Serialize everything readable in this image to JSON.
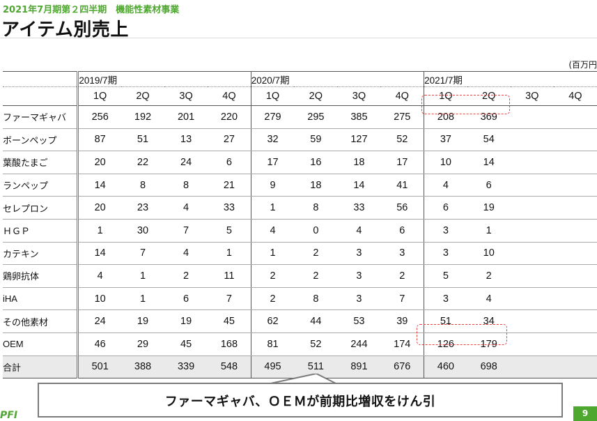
{
  "header": {
    "subtitle": "2021年7月期第２四半期　機能性素材事業",
    "title": "アイテム別売上",
    "unit": "(百万円"
  },
  "table": {
    "years": [
      "2019/7期",
      "2020/7期",
      "2021/7期"
    ],
    "quarters": [
      "1Q",
      "2Q",
      "3Q",
      "4Q",
      "1Q",
      "2Q",
      "3Q",
      "4Q",
      "1Q",
      "2Q",
      "3Q",
      "4Q"
    ],
    "rows": [
      {
        "label": "ファーマギャバ",
        "values": [
          "256",
          "192",
          "201",
          "220",
          "279",
          "295",
          "385",
          "275",
          "208",
          "369",
          "",
          ""
        ]
      },
      {
        "label": "ボーンペップ",
        "values": [
          "87",
          "51",
          "13",
          "27",
          "32",
          "59",
          "127",
          "52",
          "37",
          "54",
          "",
          ""
        ]
      },
      {
        "label": "葉酸たまご",
        "values": [
          "20",
          "22",
          "24",
          "6",
          "17",
          "16",
          "18",
          "17",
          "10",
          "14",
          "",
          ""
        ]
      },
      {
        "label": "ランペップ",
        "values": [
          "14",
          "8",
          "8",
          "21",
          "9",
          "18",
          "14",
          "41",
          "4",
          "6",
          "",
          ""
        ]
      },
      {
        "label": "セレプロン",
        "values": [
          "20",
          "23",
          "4",
          "33",
          "1",
          "8",
          "33",
          "56",
          "6",
          "19",
          "",
          ""
        ]
      },
      {
        "label": "ＨＧＰ",
        "values": [
          "1",
          "30",
          "7",
          "5",
          "4",
          "0",
          "4",
          "6",
          "3",
          "1",
          "",
          ""
        ]
      },
      {
        "label": "カテキン",
        "values": [
          "14",
          "7",
          "4",
          "1",
          "1",
          "2",
          "3",
          "3",
          "3",
          "10",
          "",
          ""
        ]
      },
      {
        "label": "鶏卵抗体",
        "values": [
          "4",
          "1",
          "2",
          "11",
          "2",
          "2",
          "3",
          "2",
          "5",
          "2",
          "",
          ""
        ]
      },
      {
        "label": "iHA",
        "values": [
          "10",
          "1",
          "6",
          "7",
          "2",
          "8",
          "3",
          "7",
          "3",
          "4",
          "",
          ""
        ]
      },
      {
        "label": "その他素材",
        "values": [
          "24",
          "19",
          "19",
          "45",
          "62",
          "44",
          "53",
          "39",
          "51",
          "34",
          "",
          ""
        ]
      },
      {
        "label": "OEM",
        "values": [
          "46",
          "29",
          "45",
          "168",
          "81",
          "52",
          "244",
          "174",
          "126",
          "179",
          "",
          ""
        ]
      }
    ],
    "total": {
      "label": "合計",
      "values": [
        "501",
        "388",
        "339",
        "548",
        "495",
        "511",
        "891",
        "676",
        "460",
        "698",
        "",
        ""
      ]
    }
  },
  "callout": {
    "text": "ファーマギャバ、ＯＥＭが前期比増収をけん引"
  },
  "footer": {
    "logo": "PFI",
    "page": "9"
  },
  "colors": {
    "accent": "#4ea72e",
    "highlight": "#e84040"
  }
}
